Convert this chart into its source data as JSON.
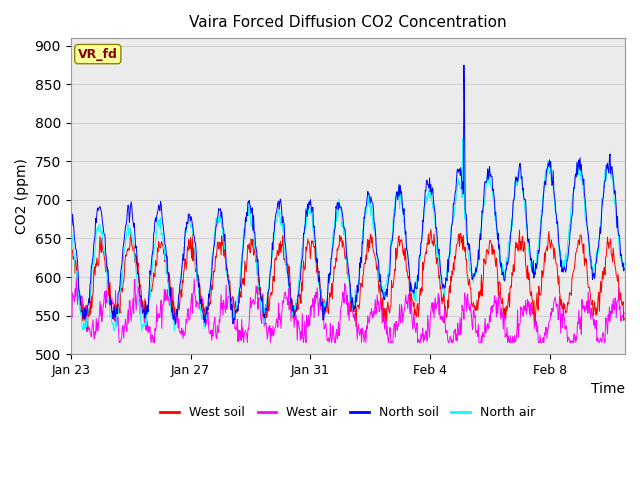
{
  "title": "Vaira Forced Diffusion CO2 Concentration",
  "xlabel": "Time",
  "ylabel": "CO2 (ppm)",
  "ylim": [
    500,
    910
  ],
  "yticks": [
    500,
    550,
    600,
    650,
    700,
    750,
    800,
    850,
    900
  ],
  "xtick_labels": [
    "Jan 23",
    "Jan 27",
    "Jan 31",
    "Feb 4",
    "Feb 8"
  ],
  "legend_entries": [
    "West soil",
    "West air",
    "North soil",
    "North air"
  ],
  "colors": {
    "west_soil": "#ff0000",
    "west_air": "#ff00ff",
    "north_soil": "#0000ff",
    "north_air": "#00ffff"
  },
  "annotation_text": "VR_fd",
  "annotation_color": "#8b0000",
  "annotation_bg": "#ffff99",
  "grid_color": "#cccccc",
  "plot_bg": "#ebebeb",
  "linewidth": 0.7
}
